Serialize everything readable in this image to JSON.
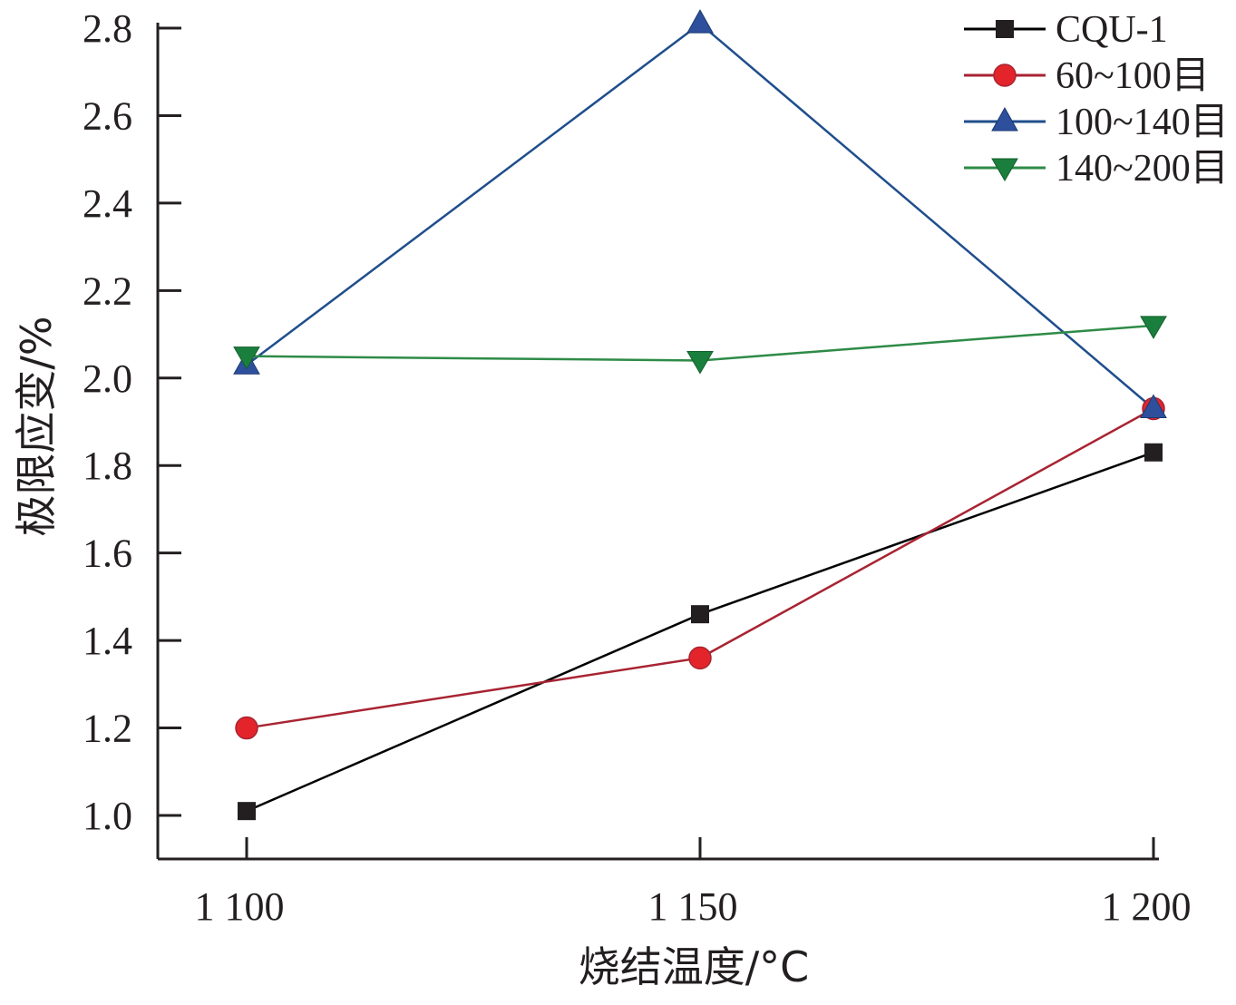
{
  "chart_data": {
    "type": "line",
    "title": "",
    "xlabel": "烧结温度/°C",
    "ylabel": "极限应变/%",
    "x": [
      1100,
      1150,
      1200
    ],
    "x_tick_labels": [
      "1 100",
      "1 150",
      "1 200"
    ],
    "ylim": [
      0.9,
      2.8
    ],
    "y_ticks": [
      1.0,
      1.2,
      1.4,
      1.6,
      1.8,
      2.0,
      2.2,
      2.4,
      2.6,
      2.8
    ],
    "y_tick_labels": [
      "1.0",
      "1.2",
      "1.4",
      "1.6",
      "1.8",
      "2.0",
      "2.2",
      "2.4",
      "2.6",
      "2.8"
    ],
    "grid": false,
    "legend_position": "top-right",
    "series": [
      {
        "name": "CQU-1",
        "values": [
          1.01,
          1.46,
          1.83
        ],
        "color": "#000000",
        "marker": "square"
      },
      {
        "name": "60~100目",
        "values": [
          1.2,
          1.36,
          1.93
        ],
        "color": "#a82433",
        "marker_fill": "#e3242b",
        "marker": "circle"
      },
      {
        "name": "100~140目",
        "values": [
          2.03,
          2.81,
          1.93
        ],
        "color": "#1f4e8c",
        "marker_fill": "#2e4f9c",
        "marker": "triangle-up"
      },
      {
        "name": "140~200目",
        "values": [
          2.05,
          2.04,
          2.12
        ],
        "color": "#2e8b47",
        "marker_fill": "#1a7f3c",
        "marker": "triangle-down"
      }
    ]
  }
}
